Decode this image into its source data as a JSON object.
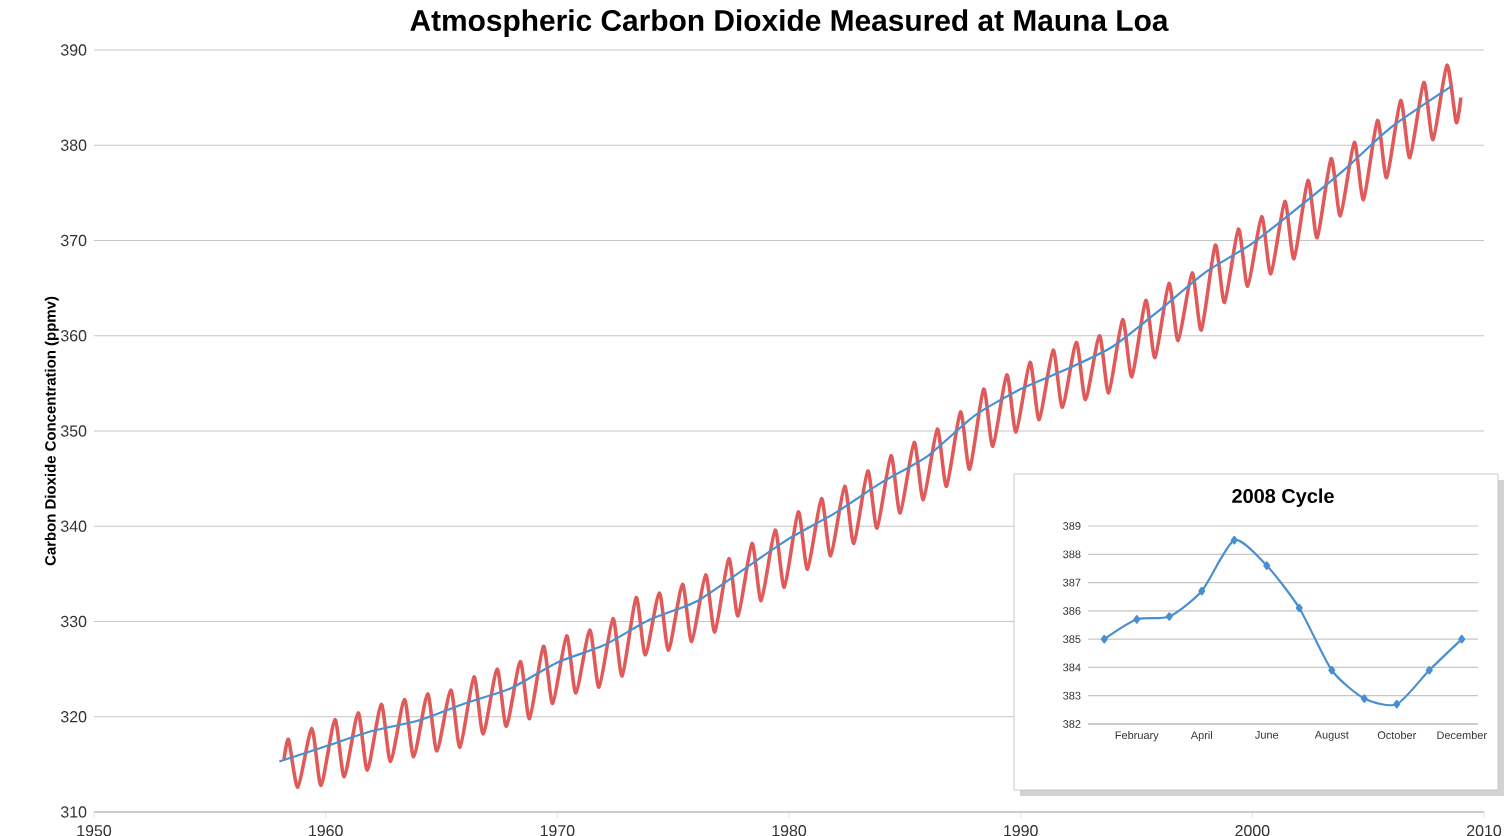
{
  "chart_data": [
    {
      "type": "line",
      "title": "Atmospheric Carbon Dioxide Measured at Mauna Loa",
      "ylabel": "Carbon Dioxide Concentration (ppmv)",
      "series": [
        {
          "color": "#e05a5a",
          "x": [
            1958.2,
            1958.4,
            1958.8,
            1959.4,
            1959.8,
            1960.4,
            1960.8,
            1961.4,
            1961.8,
            1962.4,
            1962.8,
            1963.4,
            1963.8,
            1964.4,
            1964.8,
            1965.4,
            1965.8,
            1966.4,
            1966.8,
            1967.4,
            1967.8,
            1968.4,
            1968.8,
            1969.4,
            1969.8,
            1970.4,
            1970.8,
            1971.4,
            1971.8,
            1972.4,
            1972.8,
            1973.4,
            1973.8,
            1974.4,
            1974.8,
            1975.4,
            1975.8,
            1976.4,
            1976.8,
            1977.4,
            1977.8,
            1978.4,
            1978.8,
            1979.4,
            1979.8,
            1980.4,
            1980.8,
            1981.4,
            1981.8,
            1982.4,
            1982.8,
            1983.4,
            1983.8,
            1984.4,
            1984.8,
            1985.4,
            1985.8,
            1986.4,
            1986.8,
            1987.4,
            1987.8,
            1988.4,
            1988.8,
            1989.4,
            1989.8,
            1990.4,
            1990.8,
            1991.4,
            1991.8,
            1992.4,
            1992.8,
            1993.4,
            1993.8,
            1994.4,
            1994.8,
            1995.4,
            1995.8,
            1996.4,
            1996.8,
            1997.4,
            1997.8,
            1998.4,
            1998.8,
            1999.4,
            1999.8,
            2000.4,
            2000.8,
            2001.4,
            2001.8,
            2002.4,
            2002.8,
            2003.4,
            2003.8,
            2004.4,
            2004.8,
            2005.4,
            2005.8,
            2006.4,
            2006.8,
            2007.4,
            2007.8,
            2008.4,
            2008.8,
            2009.0
          ],
          "values": [
            315.5,
            317.6,
            312.6,
            318.8,
            312.8,
            319.7,
            313.7,
            320.4,
            314.4,
            321.3,
            315.3,
            321.8,
            315.8,
            322.4,
            316.4,
            322.8,
            316.8,
            324.2,
            318.2,
            325.0,
            319.0,
            325.8,
            319.8,
            327.4,
            321.4,
            328.5,
            322.5,
            329.1,
            323.1,
            330.3,
            324.3,
            332.5,
            326.5,
            333.0,
            327.0,
            333.9,
            327.9,
            334.9,
            328.9,
            336.6,
            330.6,
            338.2,
            332.2,
            339.6,
            333.6,
            341.5,
            335.5,
            342.9,
            336.9,
            344.2,
            338.2,
            345.8,
            339.8,
            347.4,
            341.4,
            348.8,
            342.8,
            350.2,
            344.2,
            352.0,
            346.0,
            354.4,
            348.4,
            355.9,
            349.9,
            357.2,
            351.2,
            358.5,
            352.5,
            359.3,
            353.3,
            360.0,
            354.0,
            361.7,
            355.7,
            363.7,
            357.7,
            365.5,
            359.5,
            366.6,
            360.6,
            369.5,
            363.5,
            371.2,
            365.2,
            372.5,
            366.5,
            374.1,
            368.1,
            376.3,
            370.3,
            378.6,
            372.6,
            380.3,
            374.3,
            382.6,
            376.6,
            384.7,
            378.7,
            386.6,
            380.6,
            388.4,
            382.4,
            385.0
          ]
        },
        {
          "color": "#4a90d0",
          "x": [
            1958,
            1960,
            1962,
            1964,
            1966,
            1968,
            1970,
            1972,
            1974,
            1976,
            1978,
            1980,
            1982,
            1984,
            1986,
            1988,
            1990,
            1992,
            1994,
            1996,
            1998,
            2000,
            2002,
            2004,
            2006,
            2008.6
          ],
          "values": [
            315.3,
            316.9,
            318.5,
            319.6,
            321.4,
            323.0,
            325.7,
            327.5,
            330.2,
            332.1,
            335.4,
            338.7,
            341.4,
            344.6,
            347.4,
            351.6,
            354.4,
            356.5,
            358.9,
            362.7,
            366.7,
            369.7,
            373.5,
            377.5,
            381.9,
            386.2
          ]
        }
      ],
      "xlim": [
        1950,
        2010
      ],
      "xticks": [
        1950,
        1960,
        1970,
        1980,
        1990,
        2000,
        2010
      ],
      "ylim": [
        310,
        390
      ],
      "yticks": [
        310,
        320,
        330,
        340,
        350,
        360,
        370,
        380,
        390
      ],
      "grid": "y"
    },
    {
      "type": "line",
      "title": "2008 Cycle",
      "categories": [
        null,
        "February",
        null,
        "April",
        null,
        "June",
        null,
        "August",
        null,
        "October",
        null,
        "December"
      ],
      "values": [
        385.0,
        385.7,
        385.8,
        386.7,
        388.5,
        387.6,
        386.1,
        383.9,
        382.9,
        382.7,
        383.9,
        385.0
      ],
      "color": "#4a90d0",
      "marker": "diamond",
      "ylim": [
        382,
        389
      ],
      "yticks": [
        382,
        383,
        384,
        385,
        386,
        387,
        388,
        389
      ],
      "grid": "y"
    }
  ]
}
